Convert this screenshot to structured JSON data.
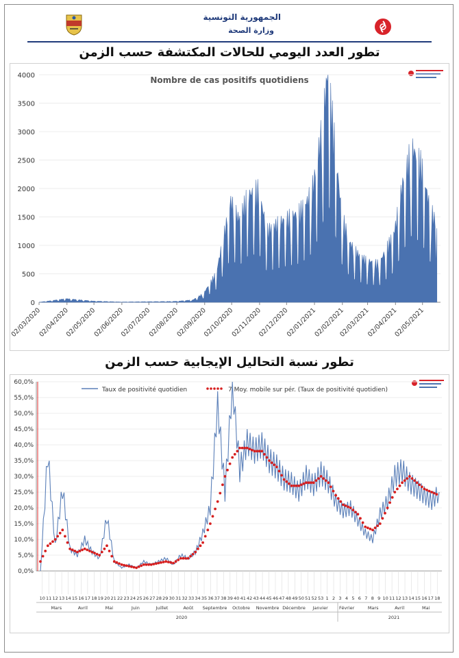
{
  "header": {
    "country": "الجمهورية التونسية",
    "ministry": "وزارة الصحة"
  },
  "chart1_title": "تطور العدد اليومي للحالات المكتشفة حسب الزمن",
  "chart2_title": "تطور نسبة التحاليل الإيجابية حسب الزمن",
  "colors": {
    "area": "#4a72b0",
    "line": "#5a7fb8",
    "ma": "#d61f1f",
    "rule": "#1f3a7a"
  },
  "chart_data": [
    {
      "type": "area",
      "title": "Nombre de cas positifs quotidiens",
      "ylim": [
        0,
        4000
      ],
      "yticks": [
        "0",
        "500",
        "1000",
        "1500",
        "2000",
        "2500",
        "3000",
        "3500",
        "4000"
      ],
      "xticks": [
        "02/03/2020",
        "02/04/2020",
        "02/05/2020",
        "02/06/2020",
        "02/07/2020",
        "02/08/2020",
        "02/09/2020",
        "02/10/2020",
        "02/11/2020",
        "02/12/2020",
        "02/01/2021",
        "02/02/2021",
        "02/03/2021",
        "02/04/2021",
        "02/05/2021"
      ],
      "x": [
        "02/03/2020",
        "01/04/2020",
        "01/05/2020",
        "01/06/2020",
        "01/07/2020",
        "01/08/2020",
        "20/08/2020",
        "01/09/2020",
        "15/09/2020",
        "01/10/2020",
        "10/10/2020",
        "20/10/2020",
        "01/11/2020",
        "10/11/2020",
        "20/11/2020",
        "01/12/2020",
        "15/12/2020",
        "25/12/2020",
        "01/01/2021",
        "10/01/2021",
        "17/01/2021",
        "25/01/2021",
        "01/02/2021",
        "10/02/2021",
        "20/02/2021",
        "01/03/2021",
        "15/03/2021",
        "01/04/2021",
        "10/04/2021",
        "20/04/2021",
        "01/05/2021",
        "10/05/2021",
        "18/05/2021"
      ],
      "values": [
        0,
        60,
        20,
        5,
        10,
        15,
        40,
        150,
        500,
        1700,
        1400,
        1800,
        1900,
        1200,
        1300,
        1400,
        1500,
        1700,
        2000,
        2900,
        3900,
        2600,
        1500,
        1000,
        800,
        700,
        650,
        1200,
        2000,
        2600,
        2300,
        1600,
        1300
      ]
    },
    {
      "type": "line",
      "ylim": [
        0,
        60
      ],
      "yticks": [
        "0,0%",
        "5,0%",
        "10,0%",
        "15,0%",
        "20,0%",
        "25,0%",
        "30,0%",
        "35,0%",
        "40,0%",
        "45,0%",
        "50,0%",
        "55,0%",
        "60,0%"
      ],
      "series": [
        {
          "name": "Taux de positivité quotidien",
          "values": [
            0,
            37,
            8,
            26,
            7,
            5,
            10,
            6,
            4,
            17,
            3,
            1,
            2,
            1,
            3,
            2,
            3,
            4,
            2,
            5,
            4,
            6,
            12,
            20,
            53,
            25,
            59,
            32,
            41,
            38,
            40,
            35,
            33,
            29,
            28,
            25,
            30,
            27,
            31,
            28,
            22,
            19,
            20,
            16,
            12,
            10,
            18,
            22,
            30,
            32,
            28,
            26,
            24,
            22,
            25
          ]
        },
        {
          "name": "7 Moy. mobile sur pér. (Taux de positivité quotidien)",
          "values": [
            3,
            8,
            10,
            13,
            7,
            6,
            7,
            6,
            5,
            8,
            3,
            2,
            1.5,
            1,
            2,
            2,
            2.5,
            3,
            2.5,
            4,
            4,
            6,
            9,
            15,
            22,
            30,
            36,
            39,
            39,
            38,
            38,
            35,
            33,
            29,
            27,
            27,
            28,
            28,
            30,
            28,
            24,
            21,
            20,
            18,
            14,
            13,
            15,
            20,
            25,
            28,
            30,
            28,
            26,
            25,
            24
          ]
        }
      ],
      "month_labels": [
        "Mars",
        "Avril",
        "Mai",
        "Juin",
        "Juillet",
        "Août",
        "Septembre",
        "Octobre",
        "Novembre",
        "Décembre",
        "Janvier",
        "Février",
        "Mars",
        "Avril",
        "Mai"
      ],
      "week_labels": [
        "10",
        "11",
        "12",
        "13",
        "14",
        "15",
        "16",
        "17",
        "18",
        "19",
        "20",
        "21",
        "22",
        "23",
        "24",
        "25",
        "26",
        "27",
        "28",
        "29",
        "30",
        "31",
        "32",
        "33",
        "34",
        "35",
        "36",
        "37",
        "38",
        "39",
        "40",
        "41",
        "42",
        "43",
        "44",
        "45",
        "46",
        "47",
        "48",
        "49",
        "50",
        "51",
        "52",
        "53",
        "1",
        "2",
        "3",
        "4",
        "5",
        "6",
        "7",
        "8",
        "9",
        "10",
        "11",
        "12",
        "13",
        "14",
        "15",
        "16",
        "17",
        "18"
      ],
      "year_labels": [
        "2020",
        "2021"
      ]
    }
  ]
}
